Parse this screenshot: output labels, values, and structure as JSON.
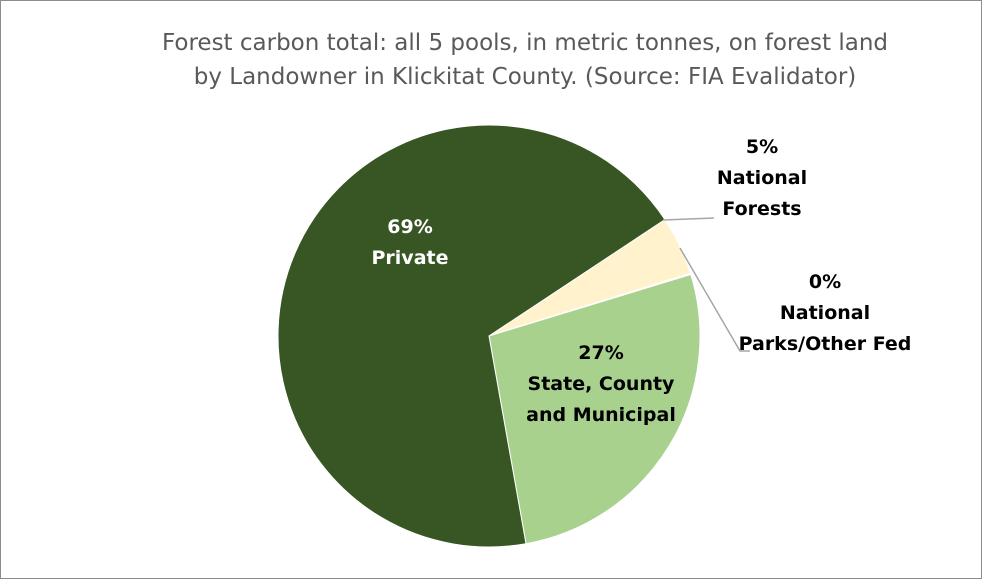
{
  "chart_data": {
    "type": "pie",
    "title_lines": [
      "Forest carbon total: all 5 pools, in metric tonnes, on forest land",
      "by Landowner in Klickitat County. (Source: FIA Evalidator)"
    ],
    "slices": [
      {
        "label_lines": [
          "5%",
          "National",
          "Forests"
        ],
        "value": 4.5,
        "color": "#fff2cc",
        "label_color": "#000000"
      },
      {
        "label_lines": [
          "0%",
          "National",
          "Parks/Other Fed"
        ],
        "value": 0.1,
        "color": "#ffffff",
        "label_color": "#000000"
      },
      {
        "label_lines": [
          "27%",
          "State, County",
          "and Municipal"
        ],
        "value": 26.9,
        "color": "#a9d18e",
        "label_color": "#000000"
      },
      {
        "label_lines": [
          "69%",
          "Private"
        ],
        "value": 68.5,
        "color": "#375623",
        "label_color": "#ffffff"
      }
    ]
  }
}
